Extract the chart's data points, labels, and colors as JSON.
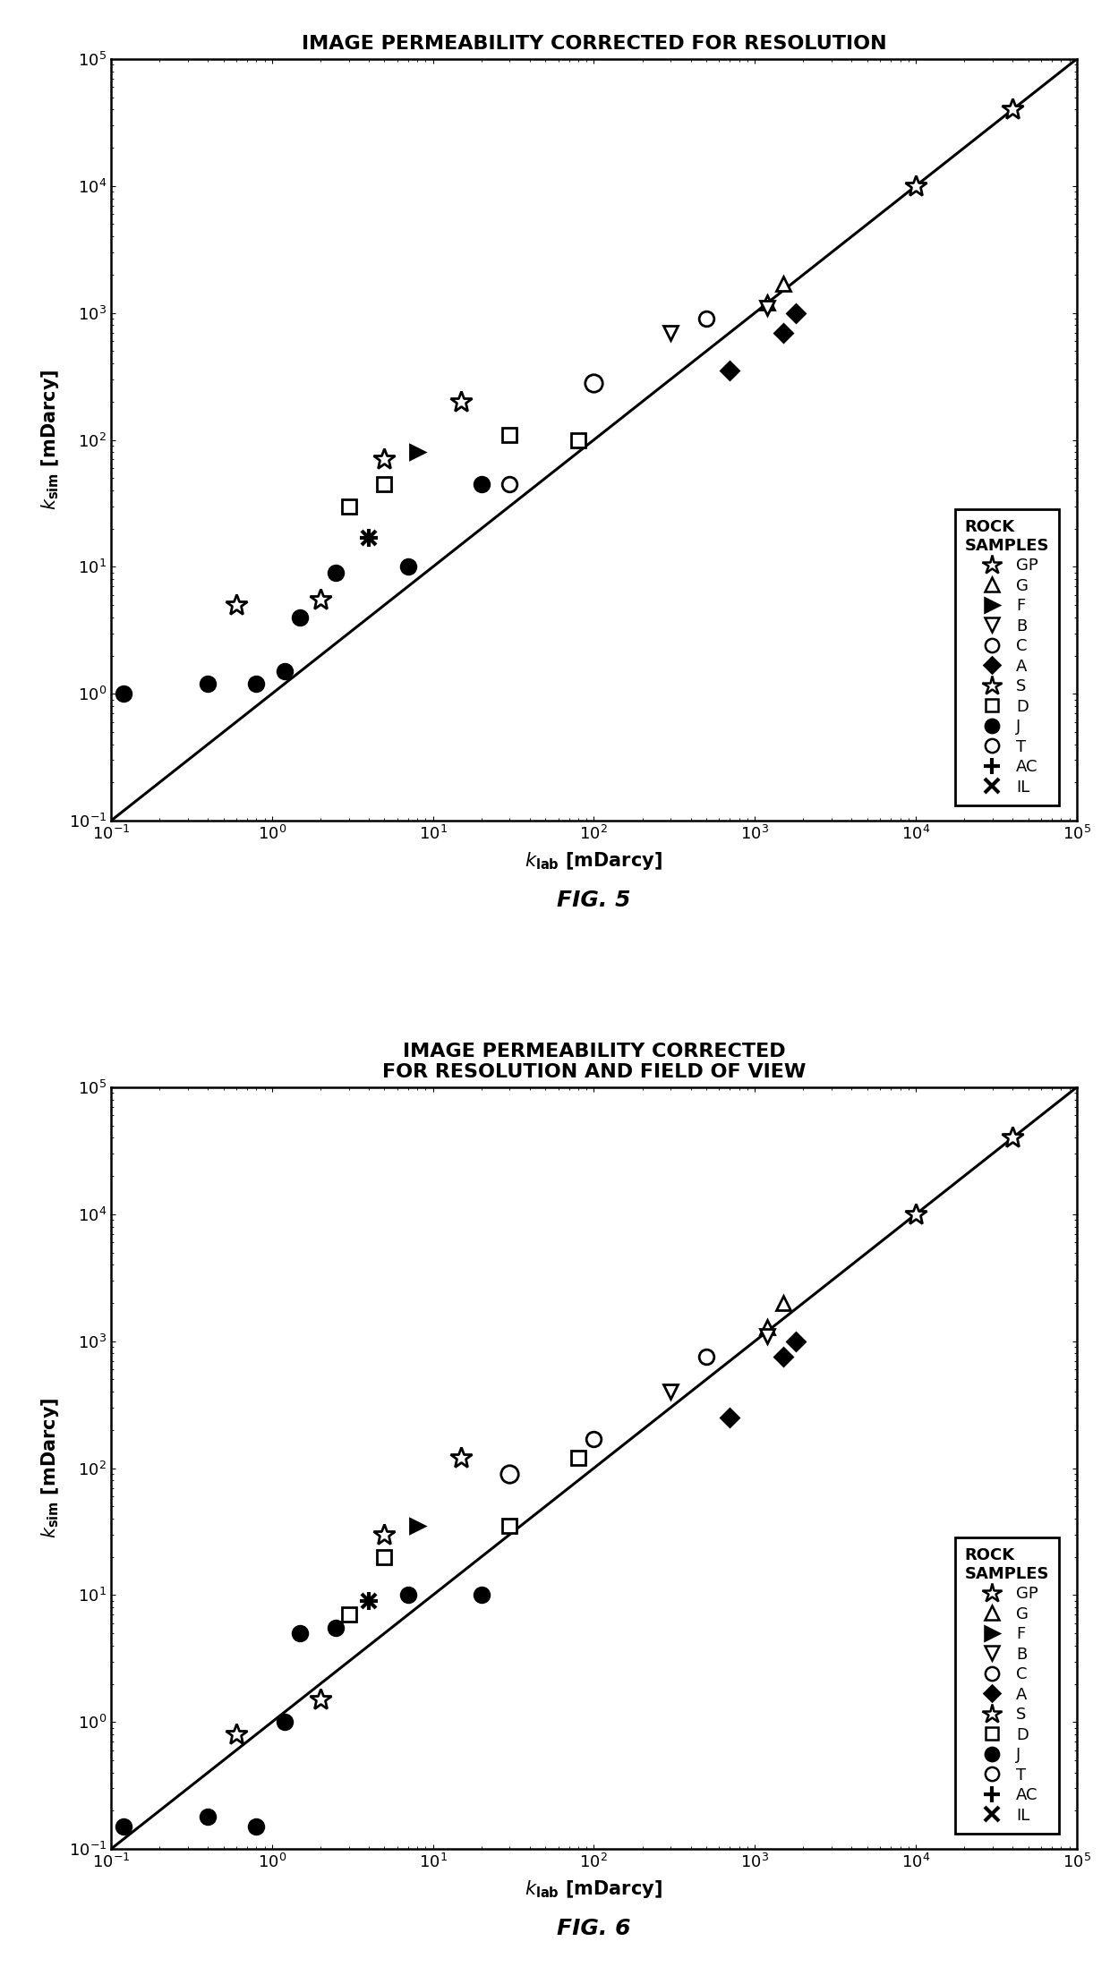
{
  "fig5": {
    "title": "IMAGE PERMEABILITY CORRECTED FOR RESOLUTION",
    "xlim": [
      0.1,
      100000.0
    ],
    "ylim": [
      0.1,
      100000.0
    ],
    "series": {
      "GP": {
        "marker": "star",
        "facecolor": "white",
        "edgecolor": "black",
        "x": [
          10000.0,
          40000.0
        ],
        "y": [
          10000.0,
          40000.0
        ]
      },
      "G": {
        "marker": "triangle_up",
        "facecolor": "white",
        "edgecolor": "black",
        "x": [
          1200,
          1500
        ],
        "y": [
          1200,
          1700
        ]
      },
      "F": {
        "marker": "triangle_right",
        "facecolor": "black",
        "edgecolor": "black",
        "x": [
          8
        ],
        "y": [
          80
        ]
      },
      "B": {
        "marker": "triangle_down",
        "facecolor": "white",
        "edgecolor": "black",
        "x": [
          300,
          1200
        ],
        "y": [
          700,
          1100
        ]
      },
      "C": {
        "marker": "circle",
        "facecolor": "white",
        "edgecolor": "black",
        "x": [
          30,
          100,
          500
        ],
        "y": [
          45,
          280,
          900
        ]
      },
      "A": {
        "marker": "diamond",
        "facecolor": "black",
        "edgecolor": "black",
        "x": [
          700,
          1800,
          1500
        ],
        "y": [
          350,
          1000,
          700
        ]
      },
      "S": {
        "marker": "star",
        "facecolor": "white",
        "edgecolor": "black",
        "x": [
          0.6,
          2,
          5,
          15
        ],
        "y": [
          5,
          5.5,
          70,
          200
        ]
      },
      "D": {
        "marker": "square",
        "facecolor": "white",
        "edgecolor": "black",
        "x": [
          3,
          5,
          30,
          80
        ],
        "y": [
          30,
          45,
          110,
          100
        ]
      },
      "J": {
        "marker": "circle",
        "facecolor": "black",
        "edgecolor": "black",
        "x": [
          0.12,
          0.4,
          0.8,
          1.2,
          1.5,
          2.5,
          7,
          20
        ],
        "y": [
          1,
          1.2,
          1.2,
          1.5,
          4,
          9,
          10,
          45
        ]
      },
      "T": {
        "marker": "circle_open_big",
        "facecolor": "white",
        "edgecolor": "black",
        "x": [
          100
        ],
        "y": [
          280
        ]
      },
      "AC": {
        "marker": "plus",
        "facecolor": "black",
        "edgecolor": "black",
        "x": [
          4
        ],
        "y": [
          17
        ]
      },
      "IL": {
        "marker": "x_marker",
        "facecolor": "black",
        "edgecolor": "black",
        "x": [
          4
        ],
        "y": [
          17
        ]
      }
    }
  },
  "fig6": {
    "title": "IMAGE PERMEABILITY CORRECTED\nFOR RESOLUTION AND FIELD OF VIEW",
    "xlim": [
      0.1,
      100000.0
    ],
    "ylim": [
      0.1,
      100000.0
    ],
    "series": {
      "GP": {
        "marker": "star",
        "facecolor": "white",
        "edgecolor": "black",
        "x": [
          10000.0,
          40000.0
        ],
        "y": [
          10000.0,
          40000.0
        ]
      },
      "G": {
        "marker": "triangle_up",
        "facecolor": "white",
        "edgecolor": "black",
        "x": [
          1200,
          1500
        ],
        "y": [
          1300,
          2000
        ]
      },
      "F": {
        "marker": "triangle_right",
        "facecolor": "black",
        "edgecolor": "black",
        "x": [
          8
        ],
        "y": [
          35
        ]
      },
      "B": {
        "marker": "triangle_down",
        "facecolor": "white",
        "edgecolor": "black",
        "x": [
          300,
          1200
        ],
        "y": [
          400,
          1100
        ]
      },
      "C": {
        "marker": "circle",
        "facecolor": "white",
        "edgecolor": "black",
        "x": [
          30,
          100,
          500
        ],
        "y": [
          90,
          170,
          750
        ]
      },
      "A": {
        "marker": "diamond",
        "facecolor": "black",
        "edgecolor": "black",
        "x": [
          700,
          1800,
          1500
        ],
        "y": [
          250,
          1000,
          750
        ]
      },
      "S": {
        "marker": "star",
        "facecolor": "white",
        "edgecolor": "black",
        "x": [
          0.6,
          2,
          5,
          15
        ],
        "y": [
          0.8,
          1.5,
          30,
          120
        ]
      },
      "D": {
        "marker": "square",
        "facecolor": "white",
        "edgecolor": "black",
        "x": [
          3,
          5,
          30,
          80
        ],
        "y": [
          7,
          20,
          35,
          120
        ]
      },
      "J": {
        "marker": "circle",
        "facecolor": "black",
        "edgecolor": "black",
        "x": [
          0.12,
          0.4,
          0.8,
          1.2,
          1.5,
          2.5,
          7,
          20
        ],
        "y": [
          0.15,
          0.18,
          0.15,
          1,
          5,
          5.5,
          10,
          10
        ]
      },
      "T": {
        "marker": "circle_open_big",
        "facecolor": "white",
        "edgecolor": "black",
        "x": [
          30
        ],
        "y": [
          90
        ]
      },
      "AC": {
        "marker": "plus",
        "facecolor": "black",
        "edgecolor": "black",
        "x": [
          4
        ],
        "y": [
          9
        ]
      },
      "IL": {
        "marker": "x_marker",
        "facecolor": "black",
        "edgecolor": "black",
        "x": [
          4
        ],
        "y": [
          9
        ]
      }
    }
  },
  "legend_labels": [
    "GP",
    "G",
    "F",
    "B",
    "C",
    "A",
    "S",
    "D",
    "J",
    "T",
    "AC",
    "IL"
  ],
  "background_color": "white",
  "line_color": "black",
  "fig5_label": "FIG. 5",
  "fig6_label": "FIG. 6",
  "xlabel": "k$_{\\mathbf{lab}}$ [mDarcy]",
  "ylabel": "k$_{\\mathbf{sim}}$ [mDarcy]"
}
